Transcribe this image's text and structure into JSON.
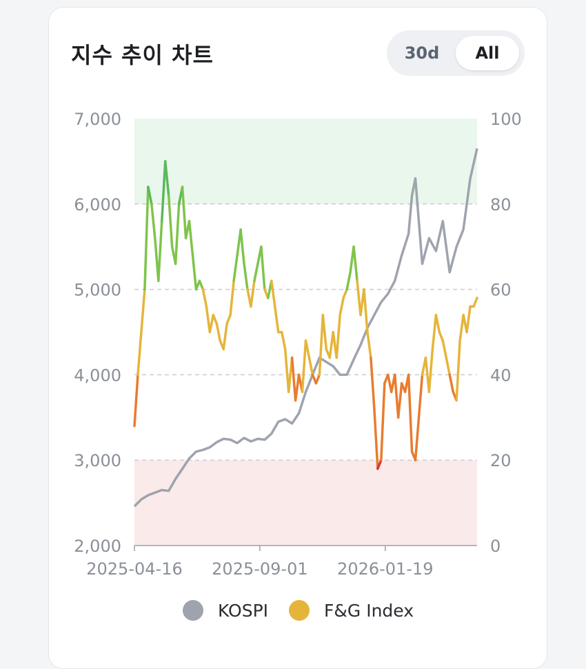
{
  "card": {
    "title": "지수 추이 차트",
    "range_toggle": {
      "options": [
        "30d",
        "All"
      ],
      "selected": "All"
    }
  },
  "colors": {
    "kospi": "#9ea3ad",
    "fg_neutral": "#e5b53a",
    "fg_greed": "#7ec44a",
    "fg_extreme_greed": "#5cb85a",
    "fg_fear": "#e87c2f",
    "fg_extreme_fear": "#d9363e",
    "greed_band": "#e9f7ec",
    "fear_band": "#fbeaea"
  },
  "chart_data": {
    "type": "line",
    "x_labels": [
      "2025-04-16",
      "2025-09-01",
      "2026-01-19"
    ],
    "y_left": {
      "ticks": [
        "2,000",
        "3,000",
        "4,000",
        "5,000",
        "6,000",
        "7,000"
      ],
      "range": [
        2000,
        7000
      ]
    },
    "y_right": {
      "ticks": [
        "0",
        "20",
        "40",
        "60",
        "80",
        "100"
      ],
      "range": [
        0,
        100
      ]
    },
    "bands": [
      {
        "from": 80,
        "to": 100,
        "color": "greed_band"
      },
      {
        "from": 0,
        "to": 20,
        "color": "fear_band"
      }
    ],
    "series": [
      {
        "name": "KOSPI",
        "axis": "left",
        "x": [
          0,
          0.02,
          0.04,
          0.06,
          0.08,
          0.1,
          0.12,
          0.14,
          0.16,
          0.18,
          0.2,
          0.22,
          0.24,
          0.26,
          0.28,
          0.3,
          0.32,
          0.34,
          0.36,
          0.38,
          0.4,
          0.42,
          0.44,
          0.46,
          0.48,
          0.5,
          0.52,
          0.54,
          0.56,
          0.58,
          0.6,
          0.62,
          0.64,
          0.66,
          0.68,
          0.7,
          0.72,
          0.74,
          0.76,
          0.78,
          0.8,
          0.81,
          0.82,
          0.84,
          0.86,
          0.88,
          0.9,
          0.92,
          0.94,
          0.96,
          0.98,
          1.0
        ],
        "values": [
          2460,
          2540,
          2590,
          2620,
          2650,
          2640,
          2780,
          2900,
          3020,
          3100,
          3120,
          3150,
          3210,
          3250,
          3240,
          3200,
          3260,
          3220,
          3250,
          3240,
          3310,
          3450,
          3480,
          3430,
          3550,
          3800,
          4000,
          4200,
          4150,
          4100,
          4000,
          4000,
          4180,
          4350,
          4550,
          4700,
          4850,
          4950,
          5100,
          5400,
          5650,
          6100,
          6300,
          5300,
          5600,
          5450,
          5800,
          5200,
          5500,
          5700,
          6300,
          6650
        ]
      },
      {
        "name": "F&G Index",
        "axis": "right",
        "x": [
          0,
          0.01,
          0.02,
          0.03,
          0.04,
          0.05,
          0.06,
          0.07,
          0.08,
          0.09,
          0.1,
          0.11,
          0.12,
          0.13,
          0.14,
          0.15,
          0.16,
          0.17,
          0.18,
          0.19,
          0.2,
          0.21,
          0.22,
          0.23,
          0.24,
          0.25,
          0.26,
          0.27,
          0.28,
          0.29,
          0.3,
          0.31,
          0.32,
          0.33,
          0.34,
          0.35,
          0.36,
          0.37,
          0.38,
          0.39,
          0.4,
          0.41,
          0.42,
          0.43,
          0.44,
          0.45,
          0.46,
          0.47,
          0.48,
          0.49,
          0.5,
          0.51,
          0.52,
          0.53,
          0.54,
          0.55,
          0.56,
          0.57,
          0.58,
          0.59,
          0.6,
          0.61,
          0.62,
          0.63,
          0.64,
          0.65,
          0.66,
          0.67,
          0.68,
          0.69,
          0.7,
          0.71,
          0.72,
          0.73,
          0.74,
          0.75,
          0.76,
          0.77,
          0.78,
          0.79,
          0.8,
          0.81,
          0.82,
          0.83,
          0.84,
          0.85,
          0.86,
          0.87,
          0.88,
          0.89,
          0.9,
          0.91,
          0.92,
          0.93,
          0.94,
          0.95,
          0.96,
          0.97,
          0.98,
          0.99,
          1.0
        ],
        "values": [
          28,
          40,
          50,
          60,
          84,
          80,
          72,
          62,
          76,
          90,
          82,
          70,
          66,
          80,
          84,
          72,
          76,
          68,
          60,
          62,
          60,
          56,
          50,
          54,
          52,
          48,
          46,
          52,
          54,
          62,
          68,
          74,
          66,
          60,
          56,
          62,
          66,
          70,
          60,
          58,
          62,
          56,
          50,
          50,
          46,
          36,
          44,
          34,
          40,
          36,
          48,
          44,
          40,
          38,
          40,
          54,
          46,
          44,
          50,
          44,
          54,
          58,
          60,
          64,
          70,
          62,
          54,
          60,
          50,
          44,
          32,
          18,
          20,
          38,
          40,
          36,
          40,
          30,
          38,
          36,
          40,
          22,
          20,
          30,
          40,
          44,
          36,
          46,
          54,
          50,
          48,
          44,
          40,
          36,
          34,
          48,
          54,
          50,
          56,
          56,
          58
        ]
      }
    ],
    "legend": {
      "position": "bottom-center",
      "entries": [
        "KOSPI",
        "F&G Index"
      ]
    },
    "grid": true
  }
}
